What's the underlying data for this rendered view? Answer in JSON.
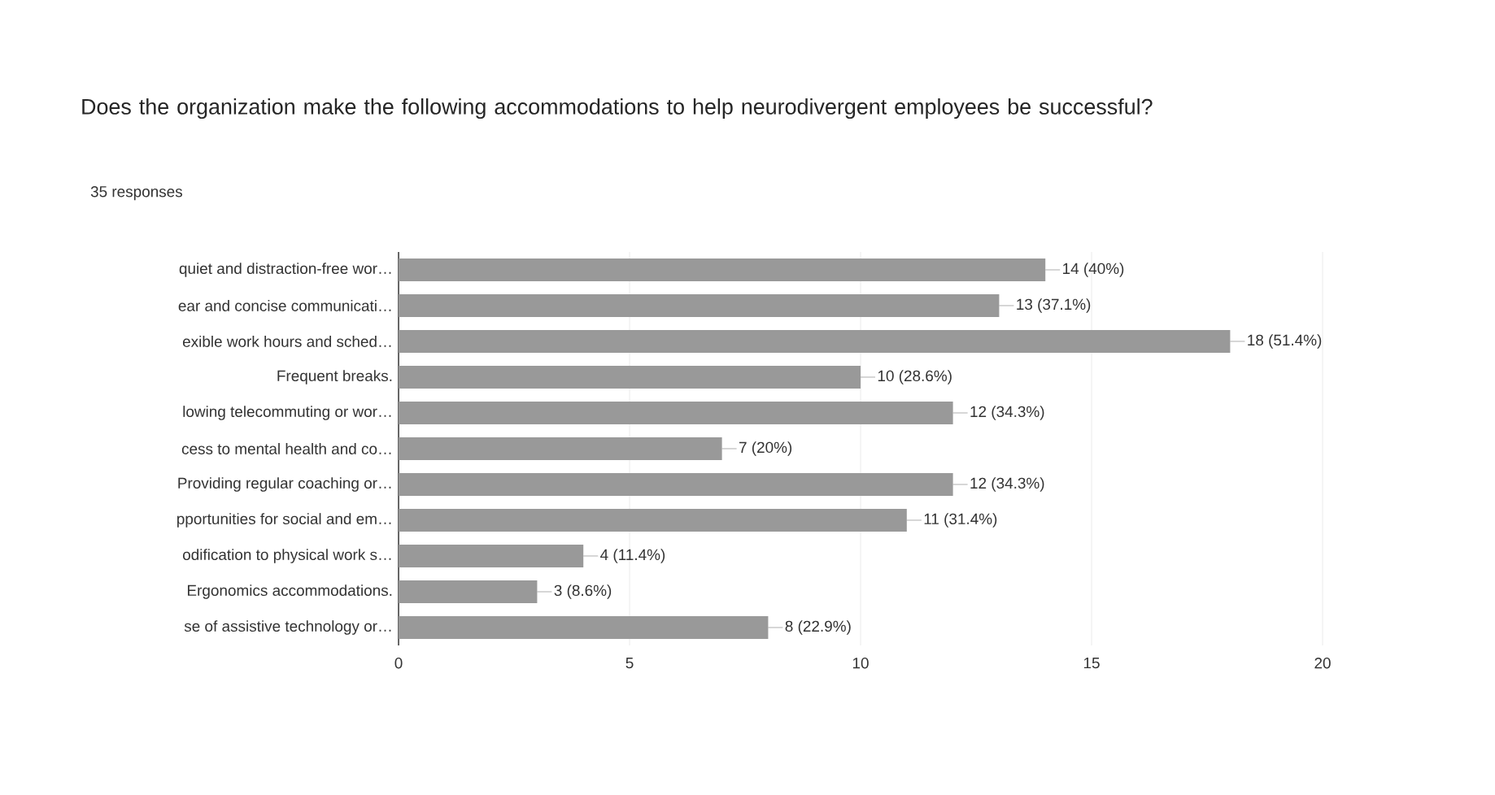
{
  "chart_data": {
    "type": "bar",
    "orientation": "horizontal",
    "title": "Does the organization make the following accommodations to help neurodivergent employees be successful?",
    "subtitle": "35 responses",
    "categories": [
      "quiet and distraction-free wor…",
      "ear and concise communicati…",
      "exible work hours and sched…",
      "Frequent breaks.",
      "lowing telecommuting or wor…",
      "cess to mental health and co…",
      "Providing regular coaching or…",
      "pportunities for social and em…",
      "odification to physical work s…",
      "Ergonomics accommodations.",
      "se of assistive technology or…"
    ],
    "values": [
      14,
      13,
      18,
      10,
      12,
      7,
      12,
      11,
      4,
      3,
      8
    ],
    "value_labels": [
      "14 (40%)",
      "13 (37.1%)",
      "18 (51.4%)",
      "10 (28.6%)",
      "12 (34.3%)",
      "7 (20%)",
      "12 (34.3%)",
      "11 (31.4%)",
      "4 (11.4%)",
      "3 (8.6%)",
      "8 (22.9%)"
    ],
    "color": "#999999",
    "xlim": [
      0,
      20
    ],
    "xticks": [
      0,
      5,
      10,
      15,
      20
    ],
    "grid": "x"
  }
}
